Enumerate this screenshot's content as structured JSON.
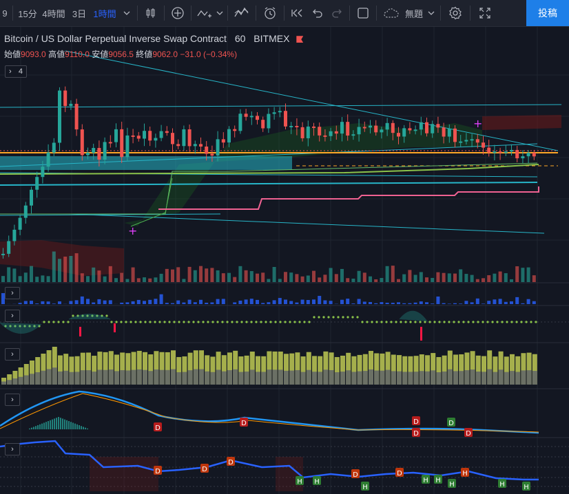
{
  "toolbar": {
    "left_glyph": "9",
    "intervals": [
      "15分",
      "4時間",
      "3日",
      "1時間"
    ],
    "active_interval": "1時間",
    "template_label": "無題",
    "post_label": "投稿",
    "icons": [
      "chevron-down-icon",
      "candles-icon",
      "plus-circle-icon",
      "indicator-icon",
      "chevron-down-icon",
      "fx-icon",
      "alert-icon",
      "replay-icon",
      "undo-icon",
      "redo-icon",
      "square-icon",
      "cloud-icon",
      "chevron-down-icon",
      "gear-icon",
      "fullscreen-icon"
    ]
  },
  "legend": {
    "title": "Bitcoin / US Dollar Perpetual Inverse Swap Contract",
    "interval": "60",
    "exchange": "BITMEX",
    "open_label": "始値",
    "open": "9093.0",
    "high_label": "高値",
    "high": "9110.0",
    "low_label": "安値",
    "low": "9056.5",
    "close_label": "終値",
    "close": "9062.0",
    "change": "−31.0 (−0.34%)",
    "indicator_count": "4"
  },
  "colors": {
    "up": "#26a69a",
    "down": "#ef5350",
    "bg": "#131722",
    "ichimoku_cloud_bull": "#1b5e20",
    "ichimoku_cloud_bear": "#6d1a1a",
    "trend_line": "#27b6c9",
    "pink_line": "#f06292",
    "orange_line": "#ffa726"
  },
  "pane_markers": {
    "pane3_labels": [
      "D",
      "D",
      "D",
      "D",
      "D",
      "D"
    ],
    "pane4_labels": [
      "D",
      "D",
      "D",
      "D",
      "D",
      "H",
      "H",
      "H",
      "H",
      "H",
      "H",
      "H",
      "H",
      "H"
    ]
  }
}
